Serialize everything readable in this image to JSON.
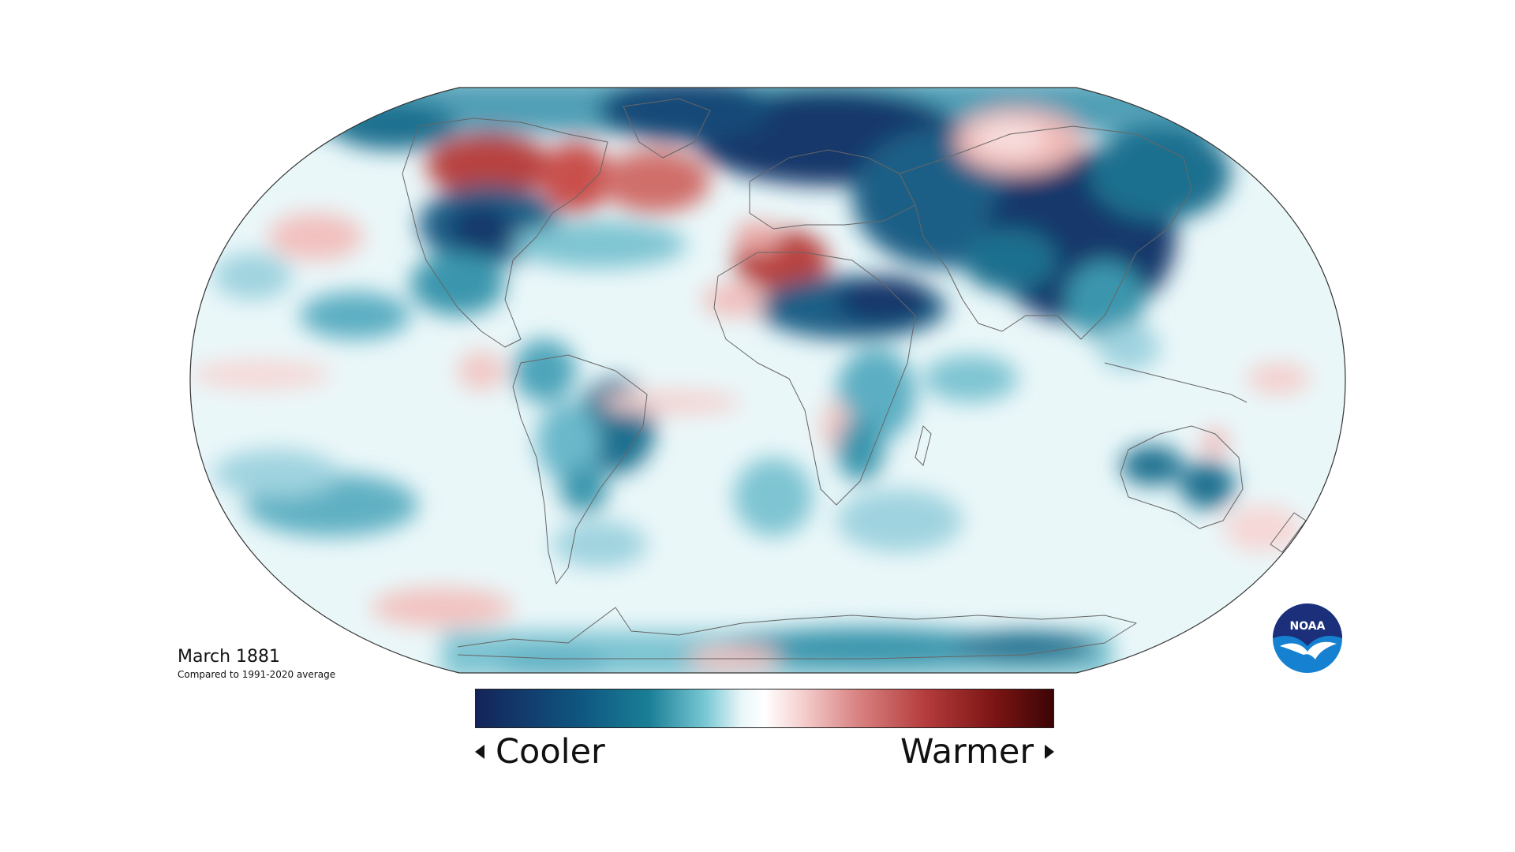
{
  "title": {
    "date": "March 1881",
    "comparison": "Compared to 1991-2020 average"
  },
  "legend": {
    "cooler_label": "Cooler",
    "warmer_label": "Warmer",
    "gradient_colors": [
      "#14245a",
      "#0f5680",
      "#1a7f96",
      "#7ccad6",
      "#e9f6f8",
      "#ffffff",
      "#f6d3d2",
      "#d98383",
      "#b43b3b",
      "#7a1414",
      "#3c0404"
    ]
  },
  "logo": {
    "text": "NOAA",
    "icon": "noaa-logo-icon",
    "colors": {
      "navy": "#1b2f7a",
      "blue": "#1581d0",
      "white": "#ffffff"
    }
  },
  "map": {
    "projection": "Robinson",
    "palette": {
      "strong_cool": "#13396a",
      "cool": "#1b6f8f",
      "mild_cool": "#74c2d2",
      "neutral": "#eaf7f9",
      "mild_warm": "#f4c9c7",
      "warm": "#cc5d5a",
      "strong_warm": "#9e2b27"
    },
    "outline_color": "#333333",
    "coastline_color": "#666666"
  }
}
